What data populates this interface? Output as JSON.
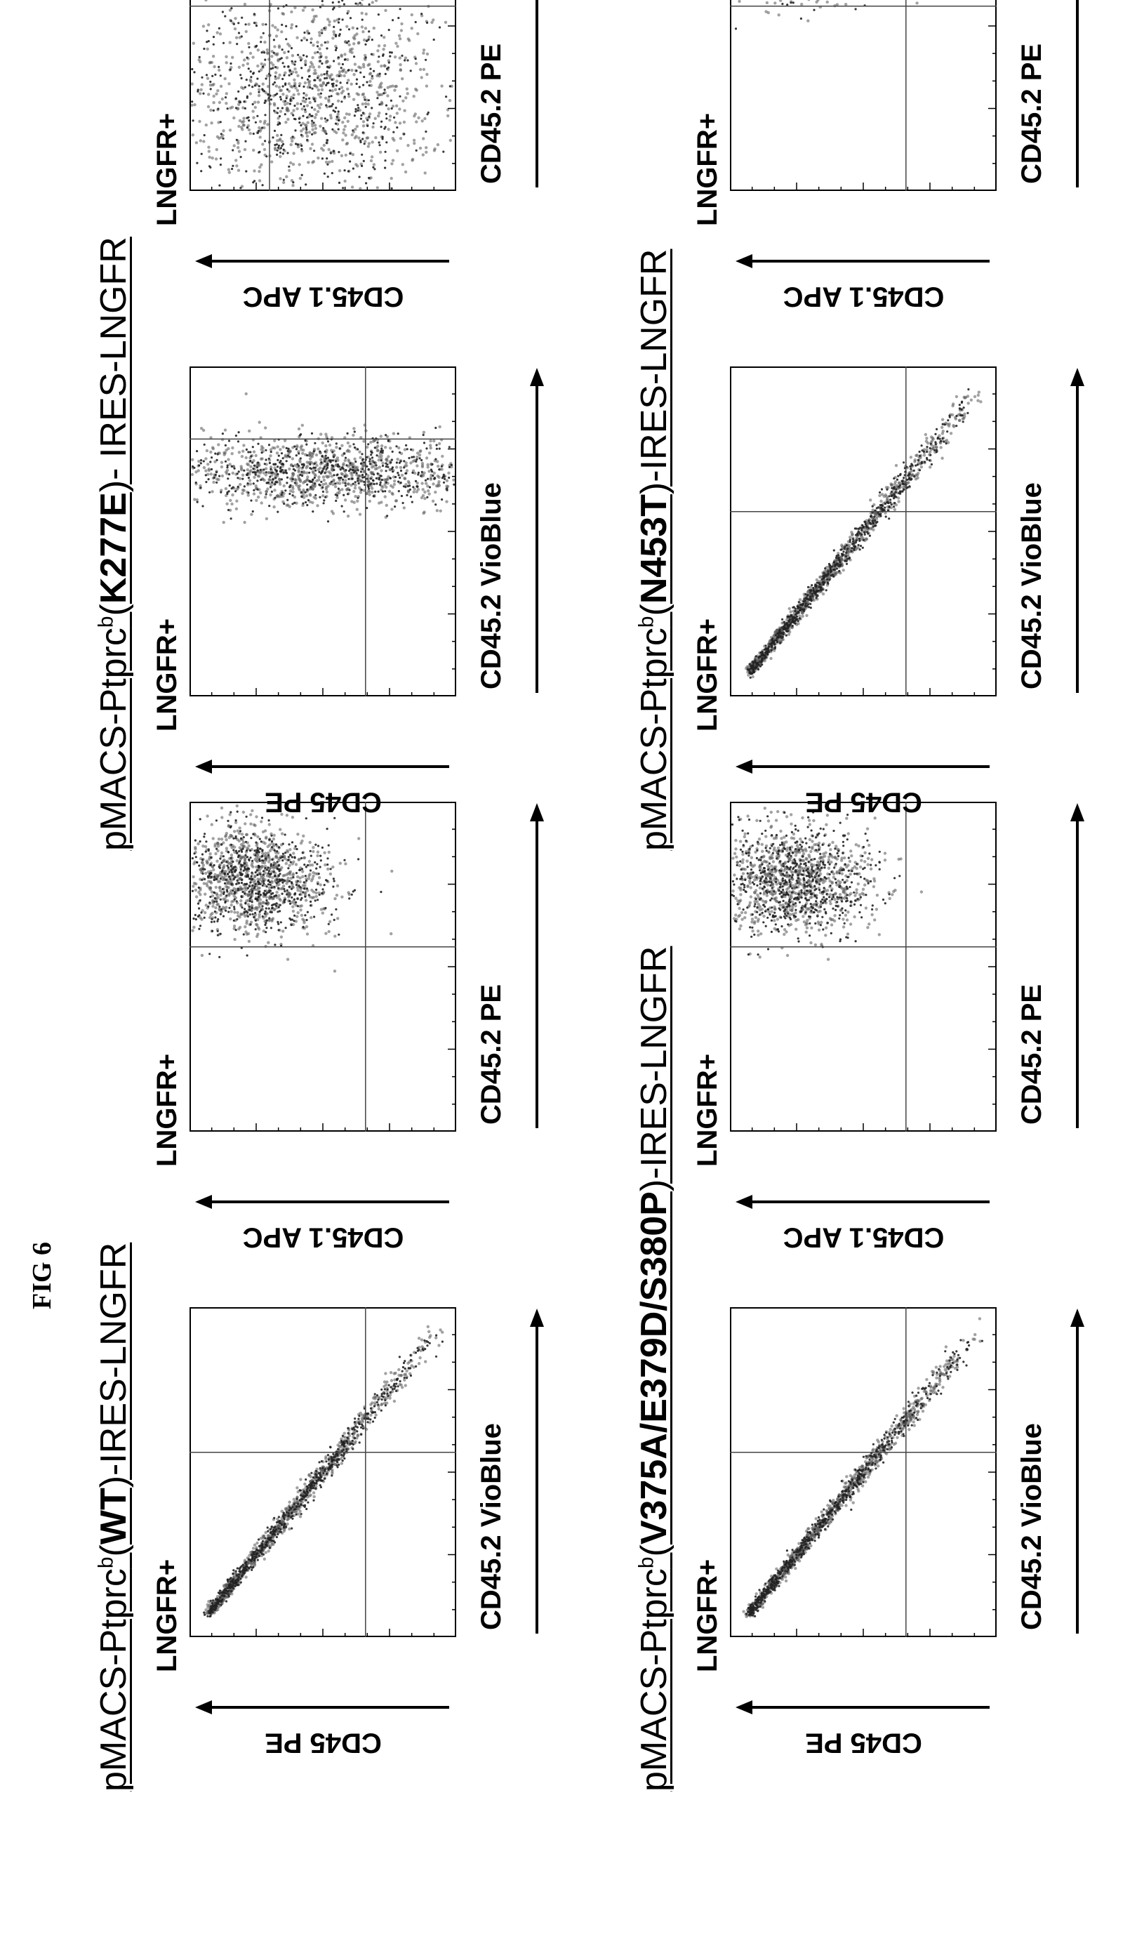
{
  "figure_label": "FIG 6",
  "constructs": [
    {
      "prefix": "pMACS-Ptprc",
      "superscript": "b",
      "open": "(",
      "mutation": "WT",
      "suffix": ")-IRES-LNGFR",
      "plots": [
        {
          "x_axis": "CD45.2 VioBlue",
          "y_axis": "CD45 PE",
          "gate_label": "LNGFR+",
          "pattern": "diagonal"
        },
        {
          "x_axis": "CD45.2 PE",
          "y_axis": "CD45.1 APC",
          "gate_label": "LNGFR+",
          "pattern": "lower-right"
        }
      ]
    },
    {
      "prefix": "pMACS-Ptprc",
      "superscript": "b",
      "open": "(",
      "mutation": "K277E",
      "suffix": ")- IRES-LNGFR",
      "plots": [
        {
          "x_axis": "CD45.2 VioBlue",
          "y_axis": "CD45 PE",
          "gate_label": "LNGFR+",
          "pattern": "vertical"
        },
        {
          "x_axis": "CD45.2 PE",
          "y_axis": "CD45.1 APC",
          "gate_label": "LNGFR+",
          "pattern": "upper-left"
        }
      ]
    },
    {
      "prefix": "pMACS-Ptprc",
      "superscript": "b",
      "open": "(",
      "mutation": "V375A/E379D/S380P",
      "suffix": ")-IRES-LNGFR",
      "plots": [
        {
          "x_axis": "CD45.2 VioBlue",
          "y_axis": "CD45 PE",
          "gate_label": "LNGFR+",
          "pattern": "diagonal"
        },
        {
          "x_axis": "CD45.2 PE",
          "y_axis": "CD45.1 APC",
          "gate_label": "LNGFR+",
          "pattern": "lower-right"
        }
      ]
    },
    {
      "prefix": "pMACS-Ptprc",
      "superscript": "b",
      "open": "(",
      "mutation": "N453T",
      "suffix": ")-IRES-LNGFR",
      "plots": [
        {
          "x_axis": "CD45.2 VioBlue",
          "y_axis": "CD45 PE",
          "gate_label": "LNGFR+",
          "pattern": "diagonal"
        },
        {
          "x_axis": "CD45.2 PE",
          "y_axis": "CD45.1 APC",
          "gate_label": "LNGFR+",
          "pattern": "lower-right"
        }
      ]
    }
  ],
  "colors": {
    "ink": "#000000",
    "cell_dense": "#555555",
    "cell_sparse": "#222222"
  }
}
